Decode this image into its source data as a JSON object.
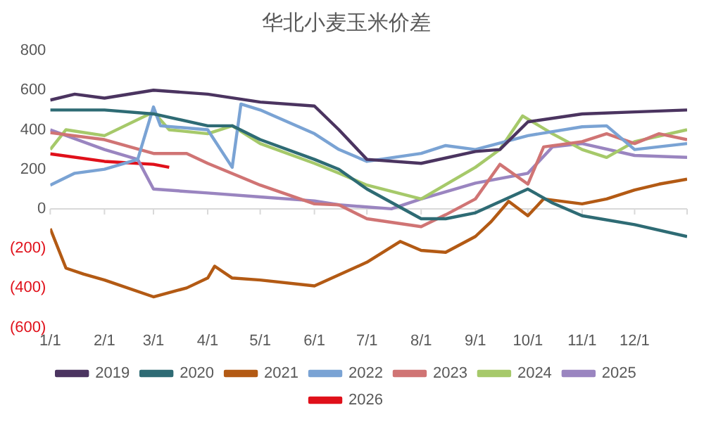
{
  "chart_data": {
    "type": "line",
    "title": "华北小麦玉米价差",
    "legend": "bottom",
    "grid": false,
    "marker": "none",
    "line_style": "solid",
    "xlim": [
      "--01-01",
      "--12-31"
    ],
    "xticks": [
      {
        "value": "--01-01",
        "label": "1/1"
      },
      {
        "value": "--02-01",
        "label": "2/1"
      },
      {
        "value": "--03-01",
        "label": "3/1"
      },
      {
        "value": "--04-01",
        "label": "4/1"
      },
      {
        "value": "--05-01",
        "label": "5/1"
      },
      {
        "value": "--06-01",
        "label": "6/1"
      },
      {
        "value": "--07-01",
        "label": "7/1"
      },
      {
        "value": "--08-01",
        "label": "8/1"
      },
      {
        "value": "--09-01",
        "label": "9/1"
      },
      {
        "value": "--10-01",
        "label": "10/1"
      },
      {
        "value": "--11-01",
        "label": "11/1"
      },
      {
        "value": "--12-01",
        "label": "12/1"
      }
    ],
    "ylim": [
      -600,
      800
    ],
    "yticks": [
      {
        "value": -600,
        "label": "(600)"
      },
      {
        "value": -400,
        "label": "(400)"
      },
      {
        "value": -200,
        "label": "(200)"
      },
      0,
      200,
      400,
      600,
      800
    ],
    "ref_lines": [
      {
        "axis": "y",
        "value": 0,
        "color": "#d9d9d9"
      }
    ],
    "series": [
      {
        "name": "2019",
        "color": "#4b3460",
        "x": [
          "--01-01",
          "--01-15",
          "--02-01",
          "--03-01",
          "--04-01",
          "--05-01",
          "--06-01",
          "--06-15",
          "--07-01",
          "--08-01",
          "--09-01",
          "--09-15",
          "--10-01",
          "--11-01",
          "--12-01",
          "--12-31"
        ],
        "values": [
          550,
          580,
          560,
          600,
          580,
          540,
          520,
          400,
          250,
          230,
          290,
          300,
          440,
          480,
          490,
          500
        ]
      },
      {
        "name": "2020",
        "color": "#2e6b74",
        "x": [
          "--01-01",
          "--02-01",
          "--03-01",
          "--04-01",
          "--04-15",
          "--05-01",
          "--06-01",
          "--06-15",
          "--07-01",
          "--08-01",
          "--08-15",
          "--09-01",
          "--10-01",
          "--10-15",
          "--11-01",
          "--12-01",
          "--12-31"
        ],
        "values": [
          500,
          500,
          480,
          420,
          420,
          350,
          250,
          200,
          100,
          -50,
          -50,
          -20,
          100,
          30,
          -35,
          -80,
          -140
        ]
      },
      {
        "name": "2021",
        "color": "#b35a14",
        "x": [
          "--01-01",
          "--01-10",
          "--01-20",
          "--02-01",
          "--03-01",
          "--03-20",
          "--04-01",
          "--04-05",
          "--04-15",
          "--05-01",
          "--06-01",
          "--07-01",
          "--07-20",
          "--08-01",
          "--08-15",
          "--09-01",
          "--09-10",
          "--09-20",
          "--10-01",
          "--10-10",
          "--11-01",
          "--11-15",
          "--12-01",
          "--12-15",
          "--12-31"
        ],
        "values": [
          -100,
          -300,
          -330,
          -360,
          -445,
          -400,
          -350,
          -290,
          -350,
          -360,
          -390,
          -270,
          -165,
          -210,
          -220,
          -140,
          -65,
          38,
          -35,
          50,
          25,
          50,
          95,
          125,
          150
        ]
      },
      {
        "name": "2022",
        "color": "#7aa3d4",
        "x": [
          "--01-01",
          "--01-15",
          "--02-01",
          "--02-20",
          "--03-01",
          "--03-05",
          "--04-01",
          "--04-15",
          "--04-20",
          "--05-01",
          "--06-01",
          "--06-15",
          "--07-01",
          "--08-01",
          "--08-15",
          "--09-01",
          "--10-01",
          "--11-01",
          "--11-15",
          "--12-01",
          "--12-31"
        ],
        "values": [
          120,
          180,
          200,
          250,
          515,
          420,
          400,
          210,
          530,
          500,
          380,
          300,
          240,
          280,
          320,
          300,
          370,
          415,
          420,
          300,
          330
        ]
      },
      {
        "name": "2023",
        "color": "#d07474",
        "x": [
          "--01-01",
          "--02-01",
          "--03-01",
          "--03-20",
          "--04-01",
          "--05-01",
          "--06-01",
          "--06-15",
          "--07-01",
          "--08-01",
          "--08-15",
          "--09-01",
          "--09-15",
          "--10-01",
          "--10-10",
          "--11-01",
          "--11-15",
          "--12-01",
          "--12-15",
          "--12-31"
        ],
        "values": [
          385,
          350,
          280,
          280,
          230,
          120,
          25,
          20,
          -50,
          -90,
          -30,
          50,
          225,
          125,
          313,
          340,
          380,
          330,
          380,
          350
        ]
      },
      {
        "name": "2024",
        "color": "#a6c96a",
        "x": [
          "--01-01",
          "--01-10",
          "--02-01",
          "--03-01",
          "--03-10",
          "--04-01",
          "--04-15",
          "--05-01",
          "--06-01",
          "--06-15",
          "--07-01",
          "--08-01",
          "--09-01",
          "--09-15",
          "--09-28",
          "--10-15",
          "--11-01",
          "--11-15",
          "--12-01",
          "--12-31"
        ],
        "values": [
          300,
          400,
          370,
          490,
          400,
          380,
          420,
          330,
          230,
          180,
          120,
          50,
          210,
          300,
          470,
          380,
          300,
          260,
          340,
          400
        ]
      },
      {
        "name": "2025",
        "color": "#9a85c0",
        "x": [
          "--01-01",
          "--02-01",
          "--02-20",
          "--03-01",
          "--04-01",
          "--05-01",
          "--06-01",
          "--06-15",
          "--07-15",
          "--08-01",
          "--09-01",
          "--10-01",
          "--10-15",
          "--11-01",
          "--12-01",
          "--12-31"
        ],
        "values": [
          400,
          300,
          250,
          100,
          80,
          60,
          40,
          20,
          0,
          50,
          130,
          180,
          313,
          330,
          270,
          260
        ]
      },
      {
        "name": "2026",
        "color": "#e0101a",
        "x": [
          "--01-01",
          "--02-01",
          "--03-01",
          "--03-10"
        ],
        "values": [
          278,
          240,
          225,
          210
        ]
      }
    ]
  }
}
